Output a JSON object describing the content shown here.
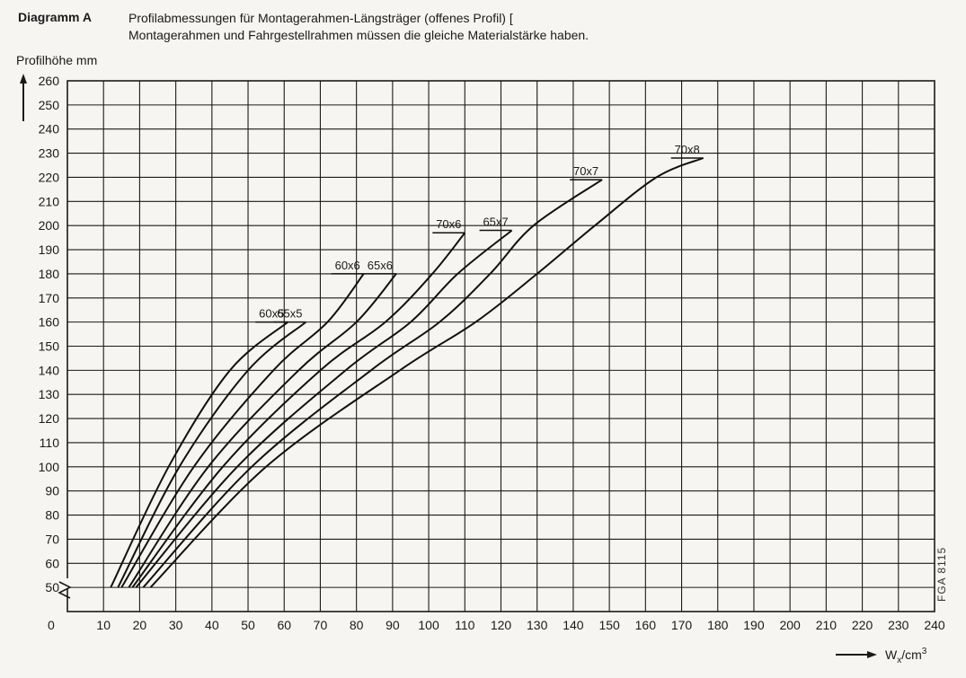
{
  "header": {
    "label": "Diagramm A",
    "line1": "Profilabmessungen für Montagerahmen-Längsträger (offenes Profil) [",
    "line2": "Montagerahmen und Fahrgestellrahmen müssen die gleiche Materialstärke haben."
  },
  "drawing_code": "FGA 8115",
  "chart_data": {
    "type": "line",
    "ylabel": "Profilhöhe mm",
    "xlabel_main": "W",
    "xlabel_sub": "x",
    "xlabel_rest": "/cm",
    "xlabel_sup": "3",
    "origin_label": "0",
    "xlim": [
      0,
      240
    ],
    "ylim": [
      40,
      260
    ],
    "y_axis_break": true,
    "grid": true,
    "x_ticks": [
      10,
      20,
      30,
      40,
      50,
      60,
      70,
      80,
      90,
      100,
      110,
      120,
      130,
      140,
      150,
      160,
      170,
      180,
      190,
      200,
      210,
      220,
      230,
      240
    ],
    "y_ticks": [
      50,
      60,
      70,
      80,
      90,
      100,
      110,
      120,
      130,
      140,
      150,
      160,
      170,
      180,
      190,
      200,
      210,
      220,
      230,
      240,
      250,
      260
    ],
    "series": [
      {
        "name": "60x5",
        "points": [
          [
            12,
            50
          ],
          [
            28,
            100
          ],
          [
            45,
            140
          ],
          [
            61,
            160
          ]
        ]
      },
      {
        "name": "65x5",
        "points": [
          [
            14,
            50
          ],
          [
            31,
            100
          ],
          [
            50,
            140
          ],
          [
            66,
            160
          ]
        ]
      },
      {
        "name": "60x6",
        "points": [
          [
            15,
            50
          ],
          [
            35,
            100
          ],
          [
            57,
            140
          ],
          [
            72,
            160
          ],
          [
            82,
            180
          ]
        ]
      },
      {
        "name": "65x6",
        "points": [
          [
            17,
            50
          ],
          [
            39,
            100
          ],
          [
            64,
            140
          ],
          [
            80,
            160
          ],
          [
            91,
            180
          ]
        ]
      },
      {
        "name": "70x6",
        "points": [
          [
            18,
            50
          ],
          [
            43,
            100
          ],
          [
            70,
            140
          ],
          [
            88,
            160
          ],
          [
            101,
            180
          ],
          [
            110,
            197
          ]
        ]
      },
      {
        "name": "65x7",
        "points": [
          [
            19,
            50
          ],
          [
            47,
            100
          ],
          [
            77,
            140
          ],
          [
            95,
            160
          ],
          [
            108,
            180
          ],
          [
            123,
            198
          ]
        ]
      },
      {
        "name": "70x7",
        "points": [
          [
            21,
            50
          ],
          [
            51,
            100
          ],
          [
            84,
            140
          ],
          [
            103,
            160
          ],
          [
            117,
            180
          ],
          [
            129,
            200
          ],
          [
            148,
            219
          ]
        ]
      },
      {
        "name": "70x8",
        "points": [
          [
            23,
            50
          ],
          [
            55,
            100
          ],
          [
            92,
            140
          ],
          [
            113,
            160
          ],
          [
            130,
            180
          ],
          [
            146,
            200
          ],
          [
            163,
            220
          ],
          [
            176,
            228
          ]
        ]
      }
    ]
  }
}
